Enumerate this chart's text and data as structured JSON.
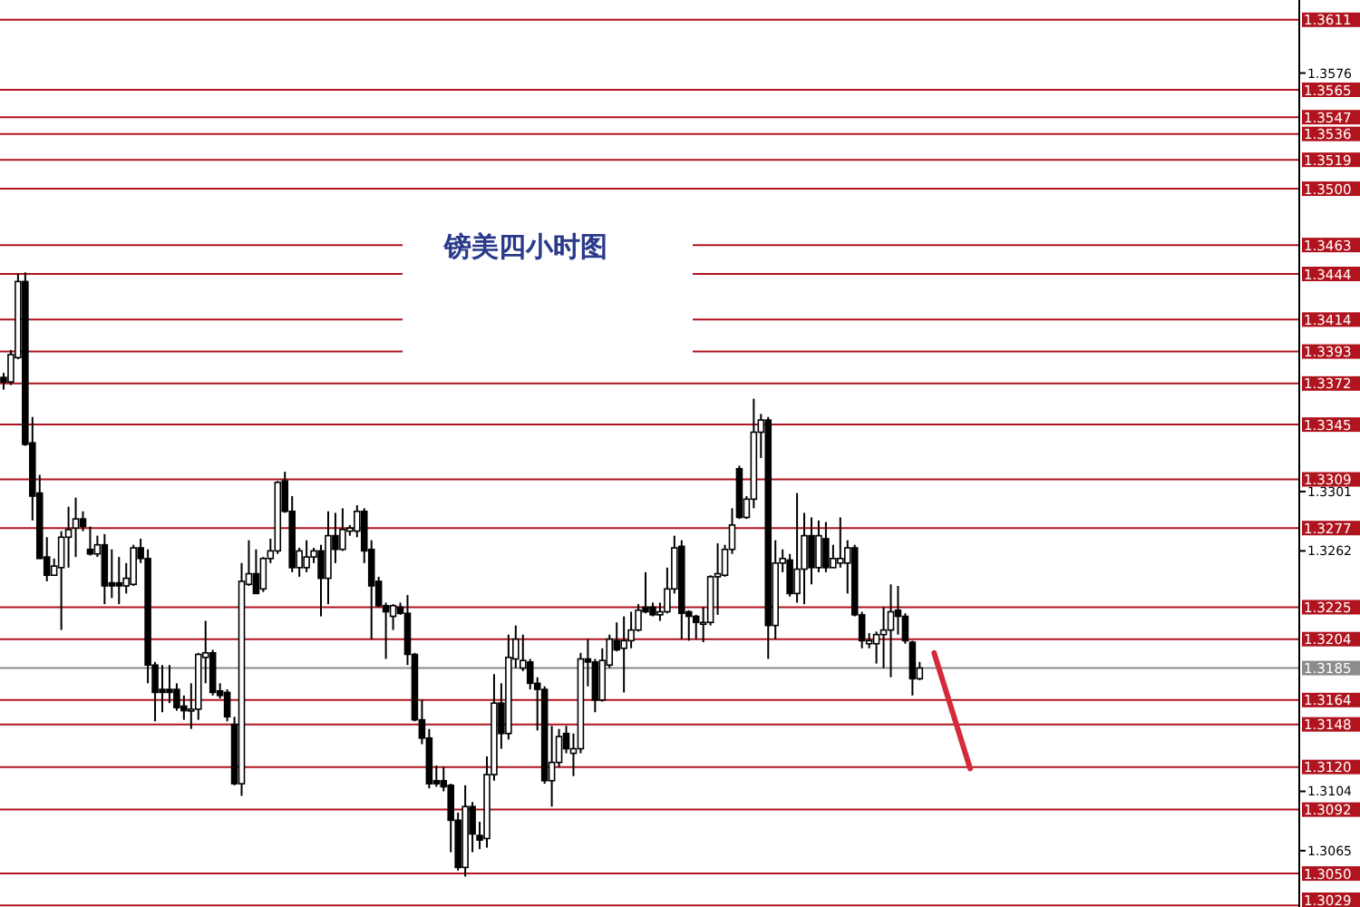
{
  "chart_data": {
    "type": "candlestick",
    "title": "镑美四小时图",
    "tick_labels": "y",
    "categories": [
      null,
      null,
      null,
      null,
      null,
      null,
      null,
      null,
      null,
      null,
      null,
      null,
      null,
      null,
      null,
      null,
      null,
      null,
      null,
      null,
      null,
      null,
      null,
      null,
      null,
      null,
      null,
      null,
      null,
      null,
      null,
      null,
      null,
      null,
      null,
      null,
      null,
      null,
      null,
      null,
      null,
      null,
      null,
      null,
      null,
      null,
      null,
      null,
      null,
      null,
      null,
      null,
      null,
      null,
      null,
      null,
      null,
      null,
      null,
      null,
      null,
      null,
      null,
      null,
      null,
      null,
      null,
      null,
      null,
      null,
      null,
      null,
      null,
      null,
      null,
      null,
      null,
      null,
      null,
      null,
      null,
      null,
      null,
      null,
      null,
      null,
      null,
      null,
      null,
      null,
      null,
      null,
      null,
      null,
      null,
      null,
      null,
      null,
      null,
      null,
      null,
      null,
      null,
      null,
      null,
      null,
      null,
      null,
      null,
      null,
      null,
      null,
      null,
      null,
      null,
      null,
      null,
      null,
      null,
      null,
      null,
      null,
      null,
      null,
      null,
      null,
      null,
      null,
      null,
      null,
      null,
      null,
      null,
      null,
      null,
      null,
      null,
      null,
      null,
      null,
      null,
      null,
      null,
      null,
      null,
      null,
      null,
      null,
      null,
      null,
      null,
      null,
      null,
      null,
      null,
      null,
      null,
      null,
      null,
      null,
      null,
      null,
      null,
      null,
      null,
      null,
      null,
      null,
      null,
      null,
      null,
      null,
      null,
      null,
      null,
      null,
      null,
      null,
      null,
      null
    ],
    "ohlc": [
      [
        1.3376,
        1.3379,
        1.3368,
        1.3373
      ],
      [
        1.3373,
        1.3394,
        1.3371,
        1.3391
      ],
      [
        1.3389,
        1.3444,
        1.3388,
        1.3439
      ],
      [
        1.3439,
        1.3445,
        1.3331,
        1.3332
      ],
      [
        1.3333,
        1.335,
        1.3282,
        1.3298
      ],
      [
        1.33,
        1.3312,
        1.3257,
        1.3257
      ],
      [
        1.3258,
        1.3271,
        1.3242,
        1.3246
      ],
      [
        1.3246,
        1.3257,
        1.3246,
        1.3252
      ],
      [
        1.3251,
        1.3275,
        1.321,
        1.3271
      ],
      [
        1.3271,
        1.3291,
        1.3251,
        1.3276
      ],
      [
        1.3277,
        1.3297,
        1.3258,
        1.3283
      ],
      [
        1.3283,
        1.3288,
        1.3275,
        1.3278
      ],
      [
        1.3263,
        1.3278,
        1.3259,
        1.326
      ],
      [
        1.326,
        1.3272,
        1.3258,
        1.3266
      ],
      [
        1.3266,
        1.3273,
        1.3227,
        1.3239
      ],
      [
        1.3241,
        1.3263,
        1.3231,
        1.3239
      ],
      [
        1.3241,
        1.3258,
        1.3227,
        1.3239
      ],
      [
        1.3239,
        1.3254,
        1.3234,
        1.3244
      ],
      [
        1.324,
        1.3266,
        1.3239,
        1.3264
      ],
      [
        1.3264,
        1.327,
        1.3254,
        1.3257
      ],
      [
        1.3257,
        1.3263,
        1.3175,
        1.3187
      ],
      [
        1.3187,
        1.3189,
        1.315,
        1.3169
      ],
      [
        1.3171,
        1.3187,
        1.3156,
        1.3169
      ],
      [
        1.3171,
        1.3187,
        1.3162,
        1.3169
      ],
      [
        1.3171,
        1.3175,
        1.3157,
        1.3159
      ],
      [
        1.316,
        1.3167,
        1.3151,
        1.3157
      ],
      [
        1.3157,
        1.3175,
        1.3145,
        1.3158
      ],
      [
        1.3158,
        1.3195,
        1.3151,
        1.3194
      ],
      [
        1.3192,
        1.3216,
        1.3175,
        1.3195
      ],
      [
        1.3195,
        1.3197,
        1.3167,
        1.3169
      ],
      [
        1.317,
        1.3175,
        1.3165,
        1.3167
      ],
      [
        1.3169,
        1.3171,
        1.315,
        1.3153
      ],
      [
        1.3148,
        1.3153,
        1.3108,
        1.3109
      ],
      [
        1.3109,
        1.3254,
        1.3101,
        1.3242
      ],
      [
        1.324,
        1.3269,
        1.3239,
        1.3247
      ],
      [
        1.3247,
        1.3263,
        1.3234,
        1.3234
      ],
      [
        1.3237,
        1.3258,
        1.3235,
        1.3257
      ],
      [
        1.3257,
        1.327,
        1.3254,
        1.3262
      ],
      [
        1.3262,
        1.3308,
        1.326,
        1.3307
      ],
      [
        1.3308,
        1.3314,
        1.3287,
        1.3288
      ],
      [
        1.3288,
        1.3298,
        1.3248,
        1.3251
      ],
      [
        1.3251,
        1.3264,
        1.3245,
        1.3262
      ],
      [
        1.3251,
        1.3269,
        1.3248,
        1.3258
      ],
      [
        1.3258,
        1.3264,
        1.3254,
        1.3262
      ],
      [
        1.3262,
        1.3266,
        1.3219,
        1.3244
      ],
      [
        1.3244,
        1.3288,
        1.3227,
        1.3272
      ],
      [
        1.3272,
        1.3287,
        1.3254,
        1.3263
      ],
      [
        1.3263,
        1.329,
        1.3262,
        1.3276
      ],
      [
        1.3275,
        1.3279,
        1.3272,
        1.3277
      ],
      [
        1.3275,
        1.3292,
        1.3271,
        1.3288
      ],
      [
        1.3288,
        1.329,
        1.3254,
        1.3262
      ],
      [
        1.3263,
        1.3269,
        1.3204,
        1.3239
      ],
      [
        1.3242,
        1.3245,
        1.3225,
        1.3226
      ],
      [
        1.3226,
        1.3228,
        1.3191,
        1.3222
      ],
      [
        1.3219,
        1.3227,
        1.321,
        1.3226
      ],
      [
        1.3225,
        1.3228,
        1.322,
        1.3221
      ],
      [
        1.3221,
        1.3233,
        1.3187,
        1.3194
      ],
      [
        1.3194,
        1.3195,
        1.315,
        1.3151
      ],
      [
        1.3151,
        1.3164,
        1.3135,
        1.3139
      ],
      [
        1.3139,
        1.3145,
        1.3106,
        1.3109
      ],
      [
        1.3111,
        1.3121,
        1.3107,
        1.3109
      ],
      [
        1.3111,
        1.312,
        1.3104,
        1.3107
      ],
      [
        1.3108,
        1.3109,
        1.3064,
        1.3085
      ],
      [
        1.3085,
        1.309,
        1.3052,
        1.3054
      ],
      [
        1.3054,
        1.3108,
        1.3048,
        1.3094
      ],
      [
        1.3094,
        1.3097,
        1.3064,
        1.3076
      ],
      [
        1.3075,
        1.3084,
        1.3066,
        1.3072
      ],
      [
        1.3073,
        1.3127,
        1.3067,
        1.3115
      ],
      [
        1.3115,
        1.3181,
        1.3111,
        1.3162
      ],
      [
        1.3162,
        1.3175,
        1.3132,
        1.3142
      ],
      [
        1.3142,
        1.3207,
        1.3138,
        1.3192
      ],
      [
        1.3191,
        1.3213,
        1.3185,
        1.3204
      ],
      [
        1.3185,
        1.3207,
        1.3183,
        1.319
      ],
      [
        1.3189,
        1.3191,
        1.3171,
        1.3175
      ],
      [
        1.3175,
        1.3179,
        1.3144,
        1.3171
      ],
      [
        1.3171,
        1.3173,
        1.3109,
        1.3111
      ],
      [
        1.3111,
        1.3147,
        1.3094,
        1.3123
      ],
      [
        1.3123,
        1.3145,
        1.312,
        1.314
      ],
      [
        1.3142,
        1.3147,
        1.3129,
        1.3132
      ],
      [
        1.3129,
        1.3142,
        1.3114,
        1.3132
      ],
      [
        1.3132,
        1.3195,
        1.3129,
        1.3191
      ],
      [
        1.3191,
        1.3204,
        1.3173,
        1.3189
      ],
      [
        1.3189,
        1.3191,
        1.3156,
        1.3164
      ],
      [
        1.3164,
        1.3198,
        1.3163,
        1.319
      ],
      [
        1.3187,
        1.3207,
        1.3185,
        1.3204
      ],
      [
        1.3203,
        1.3215,
        1.3196,
        1.3197
      ],
      [
        1.3198,
        1.3219,
        1.3169,
        1.3203
      ],
      [
        1.3203,
        1.3222,
        1.3198,
        1.321
      ],
      [
        1.321,
        1.3227,
        1.3209,
        1.3223
      ],
      [
        1.3225,
        1.3248,
        1.3221,
        1.3222
      ],
      [
        1.3225,
        1.3228,
        1.3219,
        1.322
      ],
      [
        1.322,
        1.3228,
        1.3216,
        1.3222
      ],
      [
        1.3222,
        1.3251,
        1.3221,
        1.3237
      ],
      [
        1.3237,
        1.3272,
        1.3234,
        1.3264
      ],
      [
        1.3265,
        1.3269,
        1.3204,
        1.3221
      ],
      [
        1.3222,
        1.3223,
        1.3203,
        1.3219
      ],
      [
        1.3219,
        1.322,
        1.3204,
        1.3215
      ],
      [
        1.3214,
        1.3225,
        1.3202,
        1.3215
      ],
      [
        1.3215,
        1.3246,
        1.3213,
        1.3245
      ],
      [
        1.3245,
        1.3267,
        1.322,
        1.3247
      ],
      [
        1.3246,
        1.3266,
        1.3245,
        1.3263
      ],
      [
        1.3263,
        1.329,
        1.326,
        1.3279
      ],
      [
        1.3316,
        1.3318,
        1.3283,
        1.3284
      ],
      [
        1.3284,
        1.3298,
        1.3283,
        1.3296
      ],
      [
        1.3296,
        1.3362,
        1.329,
        1.334
      ],
      [
        1.334,
        1.3352,
        1.3323,
        1.3348
      ],
      [
        1.3348,
        1.335,
        1.3191,
        1.3213
      ],
      [
        1.3213,
        1.3269,
        1.3204,
        1.3254
      ],
      [
        1.3254,
        1.3263,
        1.3248,
        1.3257
      ],
      [
        1.3256,
        1.326,
        1.3232,
        1.3234
      ],
      [
        1.3234,
        1.33,
        1.3228,
        1.325
      ],
      [
        1.325,
        1.3287,
        1.3227,
        1.3272
      ],
      [
        1.3272,
        1.3284,
        1.324,
        1.3251
      ],
      [
        1.3251,
        1.3282,
        1.3248,
        1.3272
      ],
      [
        1.327,
        1.3281,
        1.3248,
        1.3251
      ],
      [
        1.3251,
        1.3266,
        1.3251,
        1.3257
      ],
      [
        1.3254,
        1.3284,
        1.3251,
        1.3257
      ],
      [
        1.3254,
        1.3269,
        1.3234,
        1.3264
      ],
      [
        1.3264,
        1.3266,
        1.3219,
        1.322
      ],
      [
        1.322,
        1.3222,
        1.3198,
        1.3203
      ],
      [
        1.3201,
        1.3208,
        1.3198,
        1.3203
      ],
      [
        1.3201,
        1.3209,
        1.3188,
        1.3207
      ],
      [
        1.3207,
        1.3225,
        1.3185,
        1.321
      ],
      [
        1.321,
        1.324,
        1.3179,
        1.3222
      ],
      [
        1.3223,
        1.3239,
        1.3207,
        1.3219
      ],
      [
        1.3219,
        1.3221,
        1.3201,
        1.3203
      ],
      [
        1.3202,
        1.3203,
        1.3167,
        1.3178
      ],
      [
        1.3178,
        1.3189,
        1.3177,
        1.3185
      ],
      null,
      null,
      null,
      null,
      null,
      null,
      null,
      null,
      null,
      null,
      null,
      null,
      null,
      null,
      null,
      null,
      null,
      null,
      null,
      null,
      null,
      null,
      null,
      null,
      null,
      null,
      null,
      null,
      null,
      null,
      null,
      null,
      null,
      null,
      null,
      null,
      null,
      null,
      null,
      null,
      null,
      null,
      null,
      null,
      null,
      null,
      null,
      null,
      null,
      null,
      null,
      null
    ],
    "series": [
      {
        "type": "line",
        "color": "#d42a3a",
        "values": [
          null,
          null,
          null,
          null,
          null,
          null,
          null,
          null,
          null,
          null,
          null,
          null,
          null,
          null,
          null,
          null,
          null,
          null,
          null,
          null,
          null,
          null,
          null,
          null,
          null,
          null,
          null,
          null,
          null,
          null,
          null,
          null,
          null,
          null,
          null,
          null,
          null,
          null,
          null,
          null,
          null,
          null,
          null,
          null,
          null,
          null,
          null,
          null,
          null,
          null,
          null,
          null,
          null,
          null,
          null,
          null,
          null,
          null,
          null,
          null,
          null,
          null,
          null,
          null,
          null,
          null,
          null,
          null,
          null,
          null,
          null,
          null,
          null,
          null,
          null,
          null,
          null,
          null,
          null,
          null,
          null,
          null,
          null,
          null,
          null,
          null,
          null,
          null,
          null,
          null,
          null,
          null,
          null,
          null,
          null,
          null,
          null,
          null,
          null,
          null,
          null,
          null,
          null,
          null,
          null,
          null,
          null,
          null,
          null,
          null,
          null,
          null,
          null,
          null,
          null,
          null,
          null,
          null,
          null,
          null,
          null,
          null,
          null,
          null,
          null,
          null,
          null,
          null,
          null,
          1.3195,
          null,
          null,
          null,
          null,
          1.3119,
          null,
          null,
          null,
          null,
          null,
          null,
          null,
          null,
          null,
          null,
          null,
          null,
          null,
          null,
          null,
          null,
          null,
          null,
          null,
          null,
          null,
          null,
          null,
          null,
          null,
          null,
          null,
          null,
          null,
          null,
          null,
          null,
          null,
          null,
          null,
          null,
          null,
          null,
          null,
          null,
          null,
          null,
          null,
          null,
          null
        ]
      }
    ],
    "ylim": [
      1.3028,
      1.3624
    ],
    "yticks": [
      1.3576,
      1.3301,
      1.3262,
      1.3104,
      1.3065
    ],
    "ref_lines": [
      {
        "axis": "y",
        "value": 1.3611,
        "label": "1.3611",
        "color": "#b0141e"
      },
      {
        "axis": "y",
        "value": 1.3565,
        "label": "1.3565",
        "color": "#b0141e"
      },
      {
        "axis": "y",
        "value": 1.3547,
        "label": "1.3547",
        "color": "#b0141e"
      },
      {
        "axis": "y",
        "value": 1.3536,
        "label": "1.3536",
        "color": "#b0141e"
      },
      {
        "axis": "y",
        "value": 1.3519,
        "label": "1.3519",
        "color": "#b0141e"
      },
      {
        "axis": "y",
        "value": 1.35,
        "label": "1.3500",
        "color": "#b0141e"
      },
      {
        "axis": "y",
        "value": 1.3463,
        "label": "1.3463",
        "color": "#b0141e"
      },
      {
        "axis": "y",
        "value": 1.3444,
        "label": "1.3444",
        "color": "#b0141e"
      },
      {
        "axis": "y",
        "value": 1.3414,
        "label": "1.3414",
        "color": "#b0141e"
      },
      {
        "axis": "y",
        "value": 1.3393,
        "label": "1.3393",
        "color": "#b0141e"
      },
      {
        "axis": "y",
        "value": 1.3372,
        "label": "1.3372",
        "color": "#b0141e"
      },
      {
        "axis": "y",
        "value": 1.3345,
        "label": "1.3345",
        "color": "#b0141e"
      },
      {
        "axis": "y",
        "value": 1.3309,
        "label": "1.3309",
        "color": "#b0141e"
      },
      {
        "axis": "y",
        "value": 1.3277,
        "label": "1.3277",
        "color": "#b0141e"
      },
      {
        "axis": "y",
        "value": 1.3225,
        "label": "1.3225",
        "color": "#b0141e"
      },
      {
        "axis": "y",
        "value": 1.3204,
        "label": "1.3204",
        "color": "#b0141e"
      },
      {
        "axis": "y",
        "value": 1.3185,
        "label": "1.3185",
        "color": "#8c8c8c"
      },
      {
        "axis": "y",
        "value": 1.3164,
        "label": "1.3164",
        "color": "#b0141e"
      },
      {
        "axis": "y",
        "value": 1.3148,
        "label": "1.3148",
        "color": "#b0141e"
      },
      {
        "axis": "y",
        "value": 1.312,
        "label": "1.3120",
        "color": "#b0141e"
      },
      {
        "axis": "y",
        "value": 1.3092,
        "label": "1.3092",
        "color": "#b0141e"
      },
      {
        "axis": "y",
        "value": 1.305,
        "label": "1.3050",
        "color": "#b0141e"
      },
      {
        "axis": "y",
        "value": 1.3029,
        "label": "1.3029",
        "color": "#b0141e"
      }
    ]
  }
}
